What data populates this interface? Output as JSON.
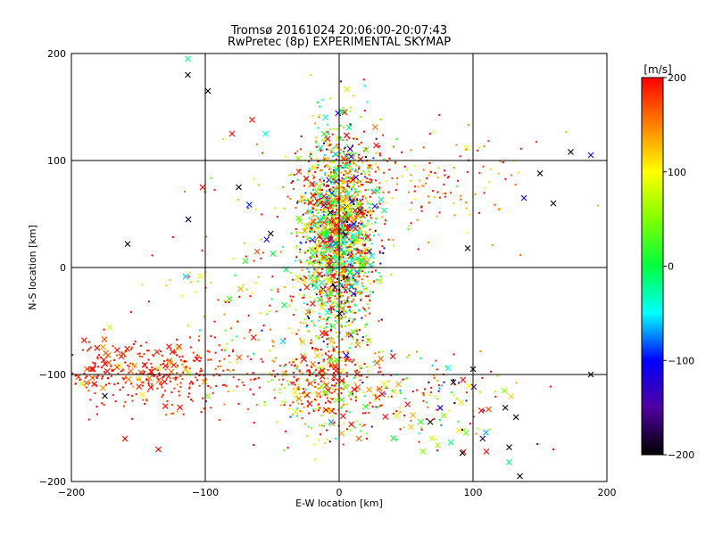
{
  "chart_data": {
    "type": "scatter",
    "title": "Tromsø 20161024 20:06:00-20:07:43",
    "subtitle": "RwPretec (8p) EXPERIMENTAL SKYMAP",
    "xlabel": "E-W location [km]",
    "ylabel": "N-S location [km]",
    "xlim": [
      -200,
      200
    ],
    "ylim": [
      -200,
      200
    ],
    "x_ticks": [
      -200,
      -100,
      0,
      100,
      200
    ],
    "y_ticks": [
      -200,
      -100,
      0,
      100,
      200
    ],
    "grid": true,
    "colorbar": {
      "label": "[m/s]",
      "range": [
        -200,
        200
      ],
      "ticks": [
        200,
        100,
        0,
        -100,
        -200
      ]
    },
    "clusters": [
      {
        "marker": "dot",
        "center": [
          0,
          30
        ],
        "spread": [
          14,
          50
        ],
        "count": 1600,
        "vmean": 80,
        "vspread": 120
      },
      {
        "marker": "cross",
        "center": [
          0,
          30
        ],
        "spread": [
          14,
          45
        ],
        "count": 260,
        "vmean": 60,
        "vspread": 130
      },
      {
        "marker": "dot",
        "center": [
          -140,
          -100
        ],
        "spread": [
          40,
          14
        ],
        "count": 320,
        "vmean": 190,
        "vspread": 20
      },
      {
        "marker": "cross",
        "center": [
          -150,
          -95
        ],
        "spread": [
          30,
          15
        ],
        "count": 60,
        "vmean": 170,
        "vspread": 40
      },
      {
        "marker": "dot",
        "center": [
          -10,
          -110
        ],
        "spread": [
          22,
          22
        ],
        "count": 320,
        "vmean": 150,
        "vspread": 90
      },
      {
        "marker": "cross",
        "center": [
          0,
          -110
        ],
        "spread": [
          20,
          20
        ],
        "count": 60,
        "vmean": 140,
        "vspread": 90
      },
      {
        "marker": "dot",
        "center": [
          60,
          -120
        ],
        "spread": [
          30,
          25
        ],
        "count": 120,
        "vmean": 90,
        "vspread": 140
      },
      {
        "marker": "cross",
        "center": [
          90,
          -140
        ],
        "spread": [
          25,
          25
        ],
        "count": 30,
        "vmean": 20,
        "vspread": 170
      },
      {
        "marker": "dot",
        "center": [
          40,
          80
        ],
        "spread": [
          50,
          25
        ],
        "count": 220,
        "vmean": 170,
        "vspread": 50
      },
      {
        "marker": "dot",
        "center": [
          -60,
          -40
        ],
        "spread": [
          40,
          45
        ],
        "count": 150,
        "vmean": 140,
        "vspread": 90
      },
      {
        "marker": "cross",
        "center": [
          -50,
          -30
        ],
        "spread": [
          40,
          40
        ],
        "count": 25,
        "vmean": 80,
        "vspread": 150
      }
    ],
    "points": [
      {
        "x": -113,
        "y": 180,
        "v": -200,
        "marker": "cross"
      },
      {
        "x": -98,
        "y": 165,
        "v": -200,
        "marker": "cross"
      },
      {
        "x": -113,
        "y": 195,
        "v": -20,
        "marker": "cross"
      },
      {
        "x": -102,
        "y": 75,
        "v": 200,
        "marker": "cross"
      },
      {
        "x": -158,
        "y": 22,
        "v": -200,
        "marker": "cross"
      },
      {
        "x": 96,
        "y": 18,
        "v": -200,
        "marker": "cross"
      },
      {
        "x": 150,
        "y": 88,
        "v": -200,
        "marker": "cross"
      },
      {
        "x": 138,
        "y": 65,
        "v": -110,
        "marker": "cross"
      },
      {
        "x": 160,
        "y": 60,
        "v": -200,
        "marker": "cross"
      },
      {
        "x": 173,
        "y": 108,
        "v": -200,
        "marker": "cross"
      },
      {
        "x": 188,
        "y": 105,
        "v": -120,
        "marker": "cross"
      },
      {
        "x": 188,
        "y": -100,
        "v": -200,
        "marker": "cross"
      },
      {
        "x": 135,
        "y": -195,
        "v": -200,
        "marker": "cross"
      },
      {
        "x": 127,
        "y": -182,
        "v": -20,
        "marker": "cross"
      },
      {
        "x": 127,
        "y": -168,
        "v": -200,
        "marker": "cross"
      },
      {
        "x": 110,
        "y": -172,
        "v": 200,
        "marker": "cross"
      },
      {
        "x": 100,
        "y": -95,
        "v": -200,
        "marker": "cross"
      },
      {
        "x": -75,
        "y": 75,
        "v": -200,
        "marker": "cross"
      },
      {
        "x": -65,
        "y": 138,
        "v": 200,
        "marker": "cross"
      },
      {
        "x": -80,
        "y": 125,
        "v": 200,
        "marker": "cross"
      },
      {
        "x": -55,
        "y": 125,
        "v": -40,
        "marker": "cross"
      },
      {
        "x": 20,
        "y": 110,
        "v": 40,
        "marker": "cross"
      },
      {
        "x": 95,
        "y": 112,
        "v": 100,
        "marker": "cross"
      },
      {
        "x": -175,
        "y": -120,
        "v": -200,
        "marker": "cross"
      },
      {
        "x": -185,
        "y": -95,
        "v": 200,
        "marker": "cross"
      },
      {
        "x": -135,
        "y": -170,
        "v": 200,
        "marker": "cross"
      },
      {
        "x": -160,
        "y": -160,
        "v": 200,
        "marker": "cross"
      },
      {
        "x": 160,
        "y": -170,
        "v": 200,
        "marker": "dot"
      },
      {
        "x": 148,
        "y": -165,
        "v": 200,
        "marker": "dot"
      }
    ]
  }
}
